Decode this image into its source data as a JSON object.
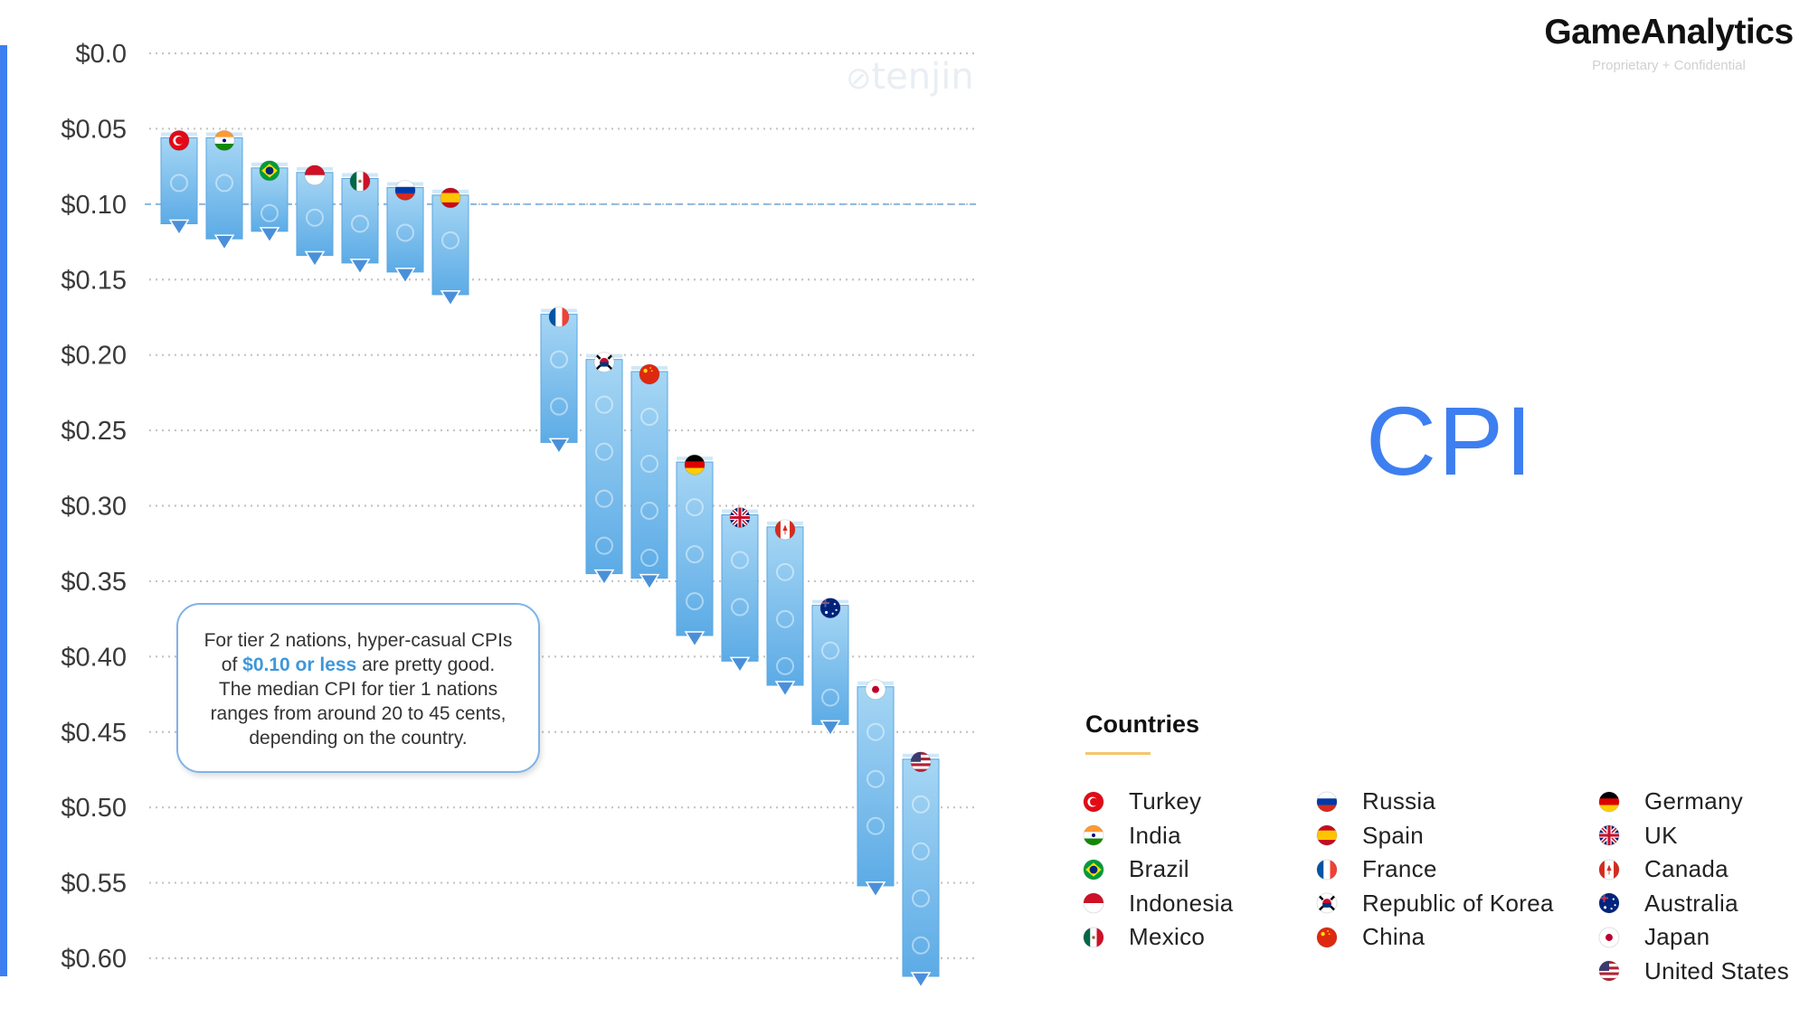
{
  "brand": {
    "name": "GameAnalytics",
    "subtitle": "Proprietary + Confidential"
  },
  "watermark": {
    "text": "tenjin",
    "icon": "tenjin-logo-icon"
  },
  "title": "CPI",
  "callout": {
    "line1": "For tier 2 nations, hyper-casual CPIs",
    "line2_pre": "of ",
    "line2_highlight": "$0.10 or less",
    "line2_post": " are pretty good.",
    "line3": "The median CPI for tier 1 nations",
    "line4": "ranges from around 20 to 45 cents,",
    "line5": "depending on the country."
  },
  "legend": {
    "title": "Countries",
    "columns": [
      [
        "Turkey",
        "India",
        "Brazil",
        "Indonesia",
        "Mexico"
      ],
      [
        "Russia",
        "Spain",
        "France",
        "Republic of Korea",
        "China"
      ],
      [
        "Germany",
        "UK",
        "Canada",
        "Australia",
        "Japan",
        "United States"
      ]
    ]
  },
  "colors": {
    "bar_top": "#9cd1f2",
    "bar_bottom": "#5aabe6",
    "marker": "#4a90d9",
    "gridline": "#bcbcbc",
    "reference_line": "#8ab8e0",
    "accent": "#3d7ff0",
    "highlight": "#3f97d9",
    "legend_underline": "#f5c66a"
  },
  "chart_data": {
    "type": "bar",
    "title": "",
    "xlabel": "",
    "ylabel": "",
    "y_axis": {
      "reversed": true,
      "range": [
        0.0,
        0.6
      ],
      "ticks": [
        0.0,
        0.05,
        0.1,
        0.15,
        0.2,
        0.25,
        0.3,
        0.35,
        0.4,
        0.45,
        0.5,
        0.55,
        0.6
      ],
      "tick_labels": [
        "$0.0",
        "$0.05",
        "$0.10",
        "$0.15",
        "$0.20",
        "$0.25",
        "$0.30",
        "$0.35",
        "$0.40",
        "$0.45",
        "$0.50",
        "$0.55",
        "$0.60"
      ]
    },
    "grid": true,
    "reference_line": {
      "value": 0.1,
      "style": "dashed"
    },
    "bars": [
      {
        "country": "Turkey",
        "top": 0.056,
        "bottom": 0.113,
        "group": 0,
        "flag": "tr"
      },
      {
        "country": "India",
        "top": 0.056,
        "bottom": 0.123,
        "group": 0,
        "flag": "in"
      },
      {
        "country": "Brazil",
        "top": 0.076,
        "bottom": 0.118,
        "group": 0,
        "flag": "br"
      },
      {
        "country": "Indonesia",
        "top": 0.079,
        "bottom": 0.134,
        "group": 0,
        "flag": "id"
      },
      {
        "country": "Mexico",
        "top": 0.083,
        "bottom": 0.139,
        "group": 0,
        "flag": "mx"
      },
      {
        "country": "Russia",
        "top": 0.089,
        "bottom": 0.145,
        "group": 0,
        "flag": "ru"
      },
      {
        "country": "Spain",
        "top": 0.094,
        "bottom": 0.16,
        "group": 0,
        "flag": "es"
      },
      {
        "country": "France",
        "top": 0.173,
        "bottom": 0.258,
        "group": 1,
        "flag": "fr"
      },
      {
        "country": "Republic of Korea",
        "top": 0.203,
        "bottom": 0.345,
        "group": 1,
        "flag": "kr"
      },
      {
        "country": "China",
        "top": 0.211,
        "bottom": 0.348,
        "group": 1,
        "flag": "cn"
      },
      {
        "country": "Germany",
        "top": 0.271,
        "bottom": 0.386,
        "group": 1,
        "flag": "de"
      },
      {
        "country": "UK",
        "top": 0.306,
        "bottom": 0.403,
        "group": 1,
        "flag": "gb"
      },
      {
        "country": "Canada",
        "top": 0.314,
        "bottom": 0.419,
        "group": 1,
        "flag": "ca"
      },
      {
        "country": "Australia",
        "top": 0.366,
        "bottom": 0.445,
        "group": 1,
        "flag": "au"
      },
      {
        "country": "Japan",
        "top": 0.42,
        "bottom": 0.552,
        "group": 1,
        "flag": "jp"
      },
      {
        "country": "United States",
        "top": 0.468,
        "bottom": 0.612,
        "group": 1,
        "flag": "us"
      }
    ]
  }
}
